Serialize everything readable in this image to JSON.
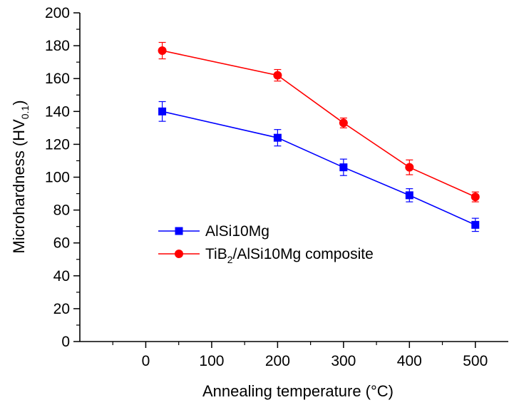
{
  "chart_data": {
    "type": "line",
    "xlabel": "Annealing temperature (°C)",
    "ylabel": {
      "main": "Microhardness (HV",
      "sub": "0.1",
      "close": ")"
    },
    "xlim": [
      -100,
      550
    ],
    "ylim": [
      0,
      200
    ],
    "xticks": [
      0,
      100,
      200,
      300,
      400,
      500
    ],
    "yticks": [
      0,
      20,
      40,
      60,
      80,
      100,
      120,
      140,
      160,
      180,
      200
    ],
    "grid": false,
    "legend_position": "center-left",
    "series": [
      {
        "name": {
          "main": "AlSi10Mg",
          "sub": "",
          "rest": ""
        },
        "marker": "square",
        "color": "#0000ff",
        "x": [
          25,
          200,
          300,
          400,
          500
        ],
        "values": [
          140,
          124,
          106,
          89,
          71
        ],
        "errors": [
          6,
          5,
          5,
          4,
          4
        ]
      },
      {
        "name": {
          "main": "TiB",
          "sub": "2",
          "rest": "/AlSi10Mg composite"
        },
        "marker": "circle",
        "color": "#ff0000",
        "x": [
          25,
          200,
          300,
          400,
          500
        ],
        "values": [
          177,
          162,
          133,
          106,
          88
        ],
        "errors": [
          5,
          3.5,
          3,
          4.5,
          3
        ]
      }
    ]
  }
}
